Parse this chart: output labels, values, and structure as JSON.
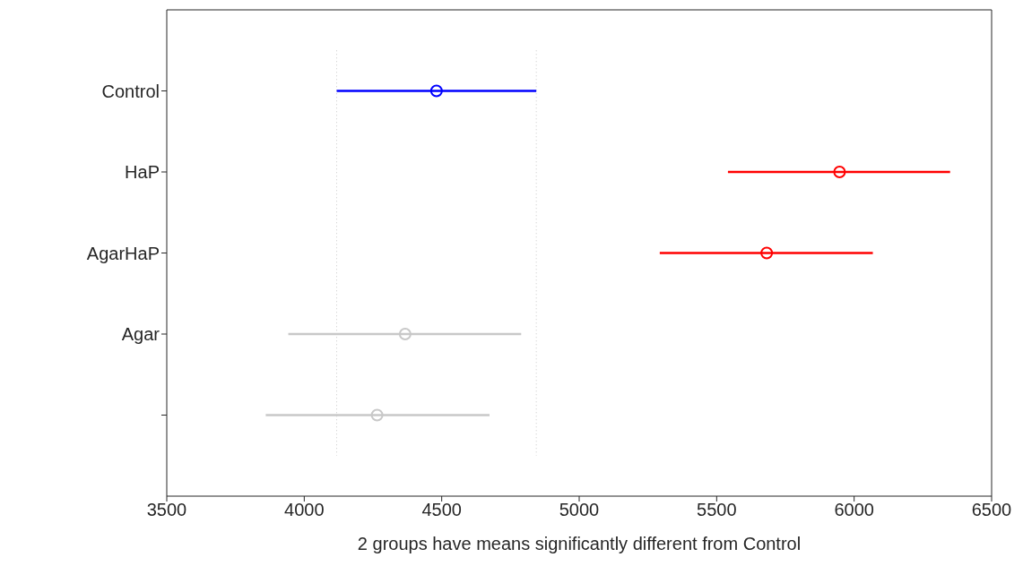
{
  "chart_data": {
    "type": "scatter",
    "orientation": "horizontal",
    "xlabel": "2 groups have means significantly different from    Control",
    "categories": [
      "Control",
      "HaP",
      "AgarHaP",
      "Agar",
      null
    ],
    "values": [
      4481,
      5947,
      5682,
      4367,
      4265
    ],
    "errors": [
      [
        4118,
        4844
      ],
      [
        5541,
        6349
      ],
      [
        5293,
        6068
      ],
      [
        3942,
        4789
      ],
      [
        3860,
        4674
      ]
    ],
    "colors": [
      "#0000ff",
      "#ff0000",
      "#ff0000",
      "#c8c8c8",
      "#c8c8c8"
    ],
    "xlim": [
      3500,
      6500
    ],
    "xticks": [
      3500,
      4000,
      4500,
      5000,
      5500,
      6000,
      6500
    ],
    "marker": "circle",
    "grid": false,
    "legend": false,
    "ref_lines": [
      {
        "axis": "x",
        "value": 4118,
        "color": "#c8c8c8",
        "line_style": "dotted"
      },
      {
        "axis": "x",
        "value": 4844,
        "color": "#c8c8c8",
        "line_style": "dotted"
      }
    ]
  }
}
